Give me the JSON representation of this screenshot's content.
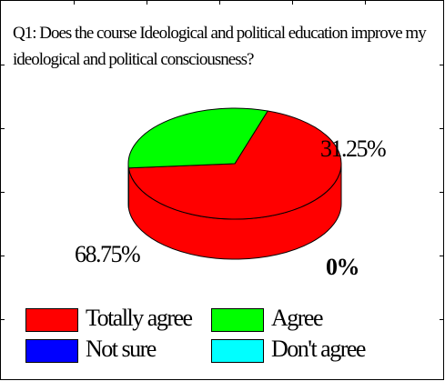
{
  "chart_data": {
    "type": "pie",
    "title": "Q1: Does the course Ideological and political education improve my ideological and political consciousness?",
    "slices": [
      {
        "label": "Totally agree",
        "value": 68.75,
        "value_label": "68.75%",
        "color": "#ff0000"
      },
      {
        "label": "Agree",
        "value": 31.25,
        "value_label": "31.25%",
        "color": "#00ff00"
      },
      {
        "label": "Not sure",
        "value": 0,
        "value_label": "",
        "color": "#0000ff"
      },
      {
        "label": "Don't agree",
        "value": 0,
        "value_label": "0%",
        "color": "#00ffff"
      }
    ],
    "style": "3d",
    "legend_position": "bottom"
  }
}
